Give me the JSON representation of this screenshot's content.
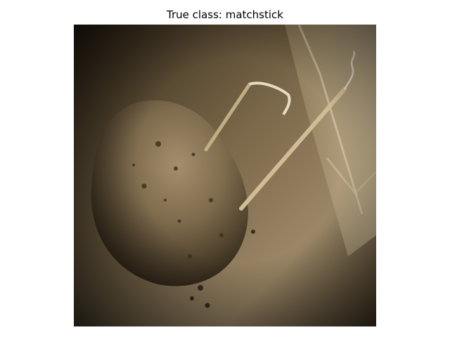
{
  "figure": {
    "title": "True class: matchstick"
  },
  "image": {
    "subject": "sepia photo of a potato with two matchsticks stuck into it",
    "palette": {
      "dark": "#1e170e",
      "mid": "#6e5c42",
      "light": "#b8a583",
      "highlight": "#d8c9a8"
    }
  }
}
